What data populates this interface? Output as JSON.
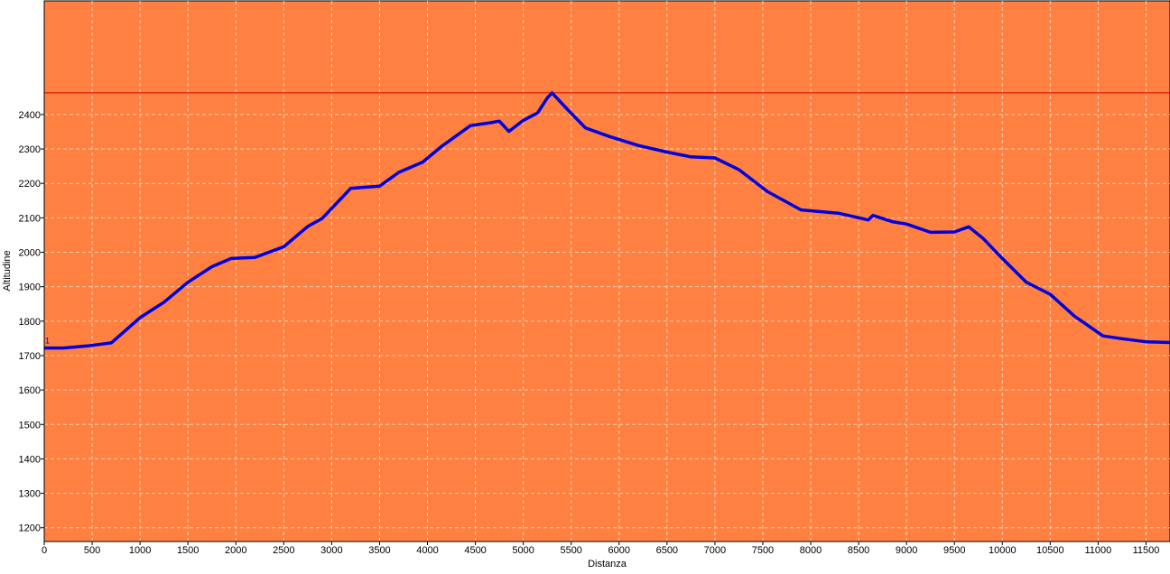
{
  "chart_data": {
    "type": "line",
    "title": "",
    "xlabel": "Distanza",
    "ylabel": "Altitudine",
    "xlim": [
      0,
      11750
    ],
    "ylim": [
      1160,
      2730
    ],
    "x_ticks": [
      0,
      500,
      1000,
      1500,
      2000,
      2500,
      3000,
      3500,
      4000,
      4500,
      5000,
      5500,
      6000,
      6500,
      7000,
      7500,
      8000,
      8500,
      9000,
      9500,
      10000,
      10500,
      11000,
      11500
    ],
    "y_ticks": [
      1200,
      1300,
      1400,
      1500,
      1600,
      1700,
      1800,
      1900,
      2000,
      2100,
      2200,
      2300,
      2400
    ],
    "grid": true,
    "start_marker": "1",
    "colors": {
      "plot_background": "#ff8040",
      "grid": "#ffd0b0",
      "line": "#0000dd",
      "max_line": "#dd0000"
    },
    "max_reference_line": 2463,
    "series": [
      {
        "name": "",
        "x": [
          0,
          200,
          450,
          700,
          1000,
          1250,
          1500,
          1750,
          1950,
          2200,
          2500,
          2750,
          2900,
          3050,
          3200,
          3500,
          3700,
          3950,
          4150,
          4450,
          4650,
          4750,
          4850,
          5000,
          5150,
          5250,
          5300,
          5450,
          5650,
          5900,
          6200,
          6500,
          6750,
          7000,
          7250,
          7550,
          7900,
          8300,
          8600,
          8650,
          8850,
          9000,
          9250,
          9500,
          9650,
          9800,
          10000,
          10250,
          10500,
          10750,
          11050,
          11250,
          11500,
          11750
        ],
        "y": [
          1722,
          1722,
          1728,
          1737,
          1810,
          1855,
          1913,
          1958,
          1982,
          1985,
          2016,
          2075,
          2098,
          2142,
          2186,
          2192,
          2232,
          2262,
          2308,
          2368,
          2376,
          2381,
          2351,
          2383,
          2405,
          2448,
          2463,
          2418,
          2361,
          2336,
          2310,
          2291,
          2277,
          2274,
          2240,
          2176,
          2123,
          2113,
          2094,
          2107,
          2089,
          2082,
          2058,
          2059,
          2074,
          2040,
          1982,
          1913,
          1878,
          1815,
          1757,
          1749,
          1740,
          1738
        ]
      }
    ]
  }
}
